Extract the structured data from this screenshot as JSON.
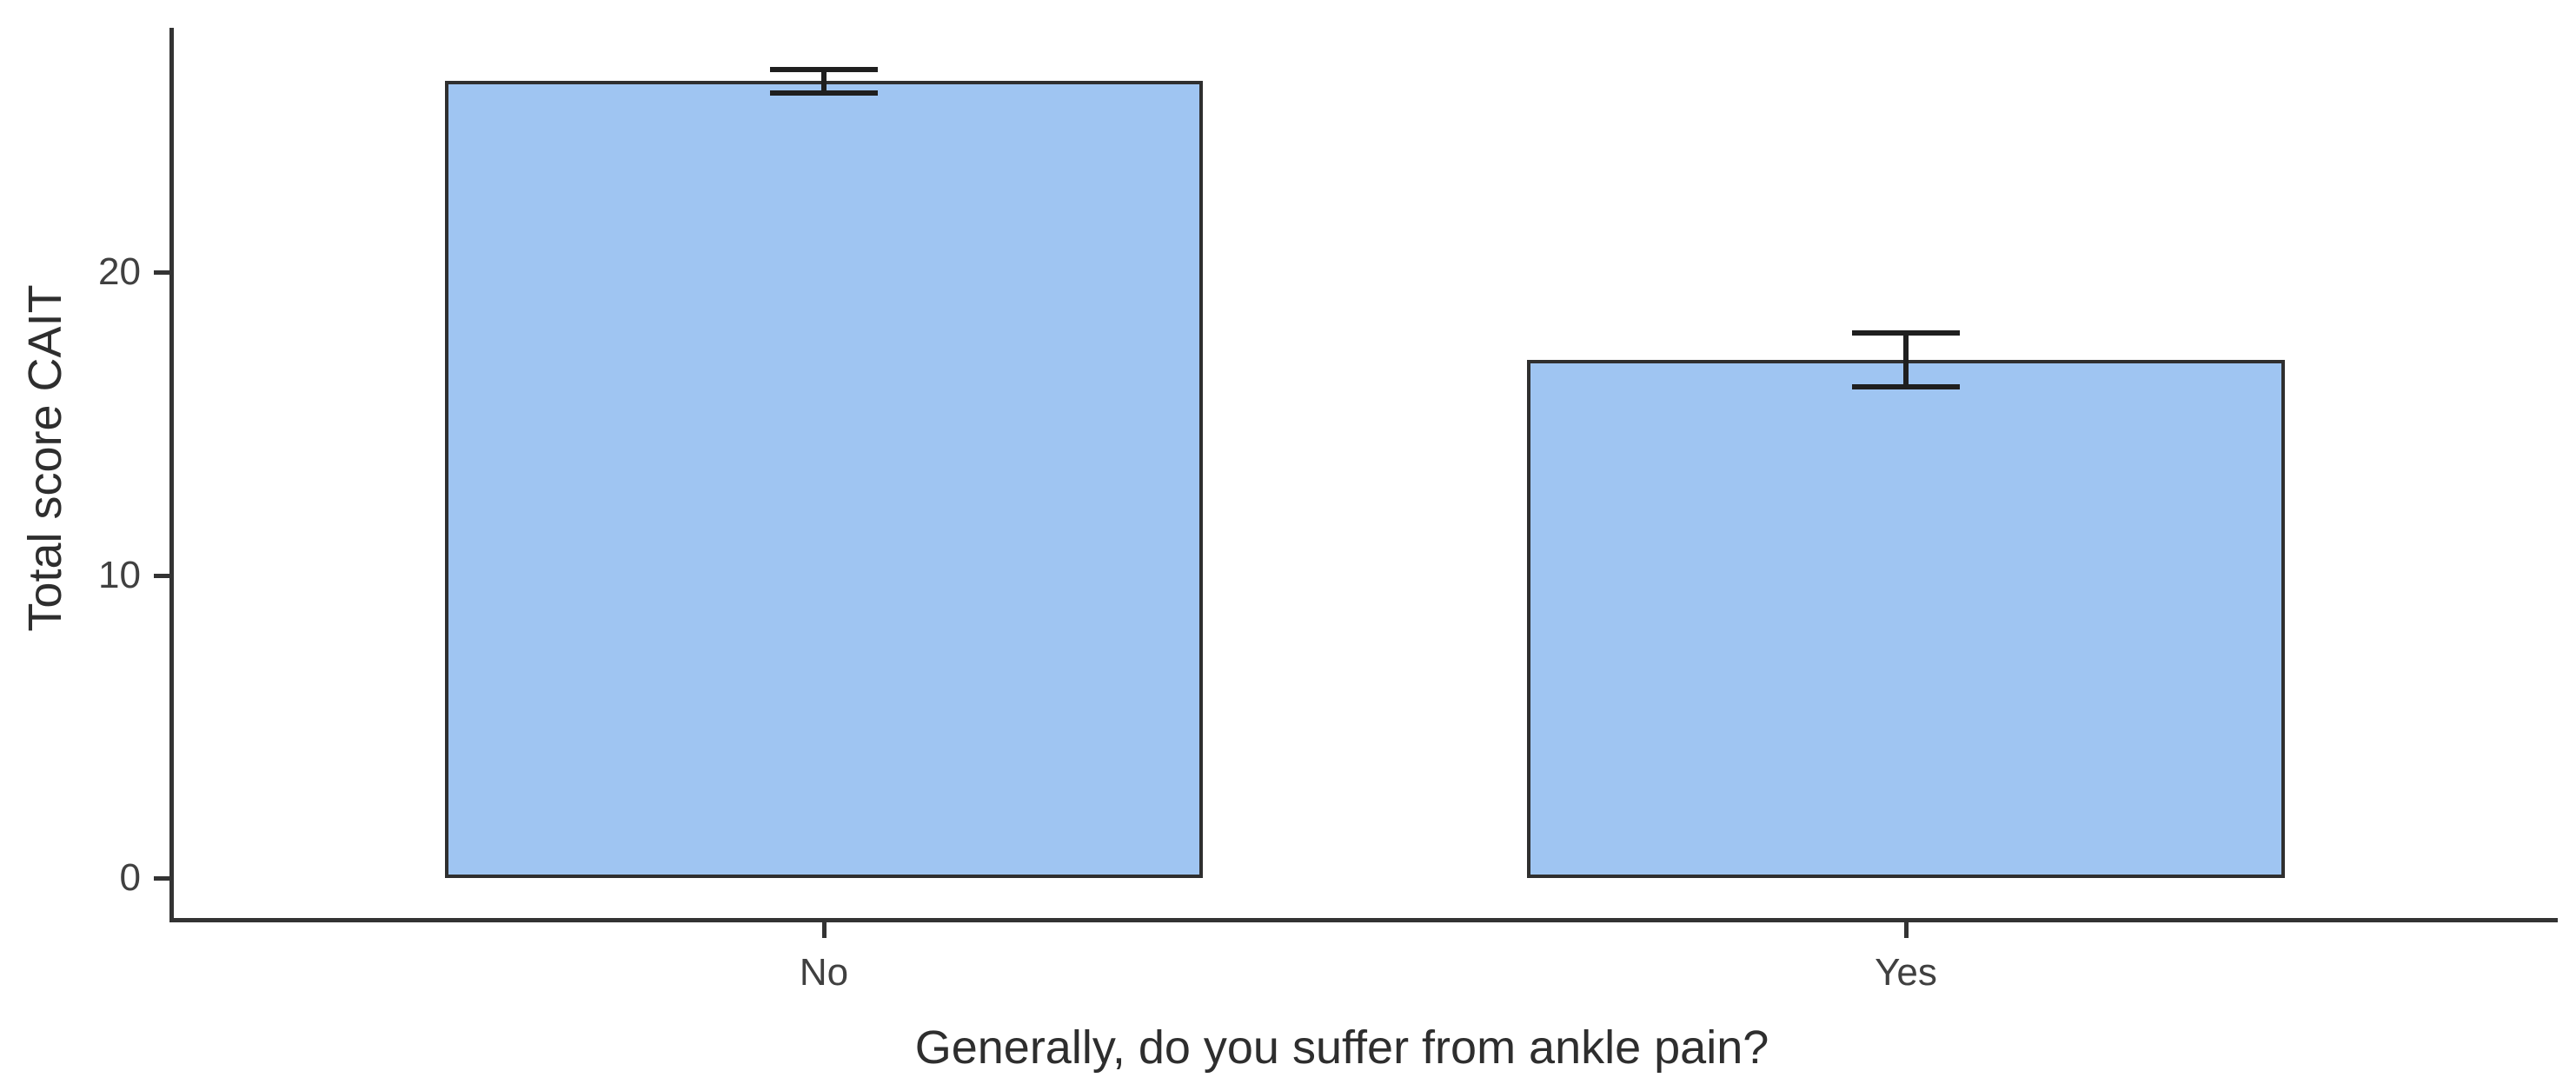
{
  "chart_data": {
    "type": "bar",
    "title": "",
    "xlabel": "Generally, do you suffer from ankle pain?",
    "ylabel": "Total score CAIT",
    "categories": [
      "No",
      "Yes"
    ],
    "values": [
      26.3,
      17.1
    ],
    "errors_upper": [
      0.4,
      0.9
    ],
    "errors_lower": [
      0.4,
      0.9
    ],
    "error_bar_style": "mean ± SE with caps",
    "yticks": [
      0,
      10,
      20
    ],
    "ylim": [
      0,
      28
    ],
    "grid": false,
    "legend": false,
    "bar_count": 2,
    "orientation": "vertical"
  },
  "colors": {
    "bar_fill": "#9FC5F2",
    "bar_stroke": "#2F2F2F",
    "error_bar": "#1F1F1F",
    "axis_line": "#333333",
    "tick_text": "#404040",
    "title_text": "#2E2E2E",
    "background": "#FFFFFF"
  }
}
